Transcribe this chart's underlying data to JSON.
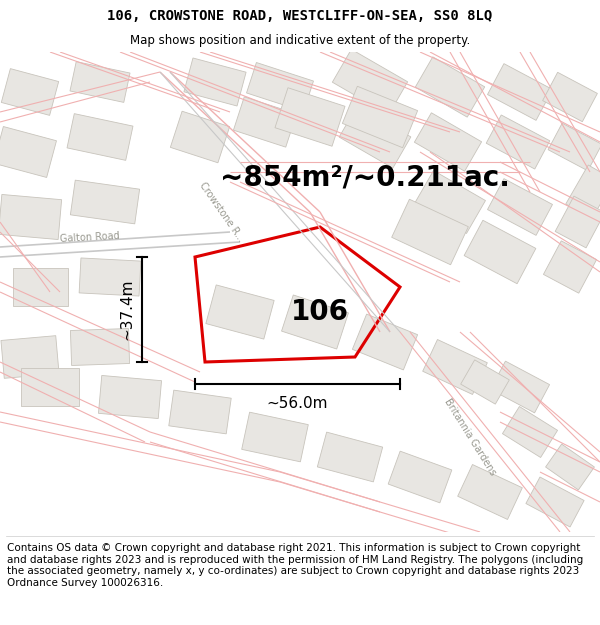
{
  "title_line1": "106, CROWSTONE ROAD, WESTCLIFF-ON-SEA, SS0 8LQ",
  "title_line2": "Map shows position and indicative extent of the property.",
  "area_text": "~854m²/~0.211ac.",
  "label_106": "106",
  "dim_vertical": "~37.4m",
  "dim_horizontal": "~56.0m",
  "road_label1": "Galton Road",
  "road_label2": "Crowstone R...",
  "road_label3": "Britannia Gardens",
  "footer": "Contains OS data © Crown copyright and database right 2021. This information is subject to Crown copyright and database rights 2023 and is reproduced with the permission of HM Land Registry. The polygons (including the associated geometry, namely x, y co-ordinates) are subject to Crown copyright and database rights 2023 Ordnance Survey 100026316.",
  "map_bg": "#fafaf8",
  "building_color": "#e8e6e2",
  "building_edge": "#c8c4bc",
  "road_line_color": "#f0b0b0",
  "road_line_color2": "#c8c8c8",
  "highlight_color": "#dd0000",
  "title_bg": "#ffffff",
  "footer_bg": "#ffffff",
  "title_fontsize": 10,
  "subtitle_fontsize": 8.5,
  "area_fontsize": 20,
  "label_fontsize": 20,
  "dim_fontsize": 11,
  "road_label_fontsize": 7,
  "footer_fontsize": 7.5
}
